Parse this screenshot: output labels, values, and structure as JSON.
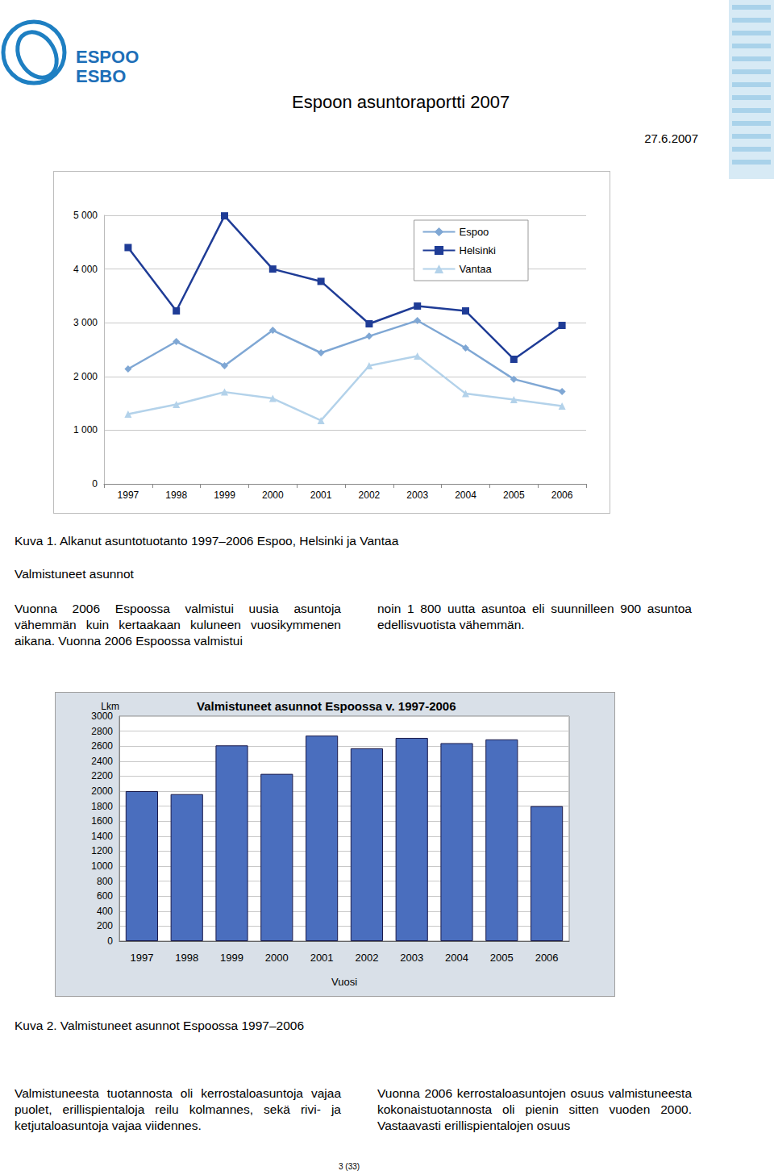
{
  "header": {
    "logo": [
      "ESPOO",
      "ESBO"
    ],
    "title": "Espoon asuntoraportti 2007",
    "date": "27.6.2007"
  },
  "chart_data": [
    {
      "type": "line",
      "categories": [
        "1997",
        "1998",
        "1999",
        "2000",
        "2001",
        "2002",
        "2003",
        "2004",
        "2005",
        "2006"
      ],
      "series": [
        {
          "name": "Espoo",
          "color": "#7fa7d4",
          "marker": "diamond",
          "values": [
            2140,
            2650,
            2200,
            2860,
            2440,
            2750,
            3040,
            2530,
            1950,
            1720
          ]
        },
        {
          "name": "Helsinki",
          "color": "#1f3c96",
          "marker": "square",
          "values": [
            4400,
            3220,
            4990,
            4000,
            3770,
            2980,
            3310,
            3220,
            2320,
            2950
          ]
        },
        {
          "name": "Vantaa",
          "color": "#b3d2ea",
          "marker": "triangle",
          "values": [
            1300,
            1480,
            1710,
            1590,
            1180,
            2200,
            2380,
            1680,
            1570,
            1450
          ]
        }
      ],
      "ylim": [
        0,
        5000
      ],
      "yticks": [
        0,
        {
          "value": 1000,
          "label": "1 000"
        },
        {
          "value": 2000,
          "label": "2 000"
        },
        {
          "value": 3000,
          "label": "3 000"
        },
        {
          "value": 4000,
          "label": "4 000"
        },
        {
          "value": 5000,
          "label": "5 000"
        }
      ],
      "grid": true,
      "legend": "upper right"
    },
    {
      "type": "bar",
      "title": "Valmistuneet asunnot Espoossa v. 1997-2006",
      "x_label": "Vuosi",
      "y_label": "Lkm",
      "categories": [
        "1997",
        "1998",
        "1999",
        "2000",
        "2001",
        "2002",
        "2003",
        "2004",
        "2005",
        "2006"
      ],
      "values": [
        2000,
        1960,
        2610,
        2230,
        2740,
        2570,
        2710,
        2640,
        2690,
        1800
      ],
      "color": "#4a6ebe",
      "ylim": [
        0,
        3000
      ],
      "yticks": [
        0,
        200,
        400,
        600,
        800,
        1000,
        1200,
        1400,
        1600,
        1800,
        2000,
        2200,
        2400,
        2600,
        2800,
        3000
      ],
      "grid": true
    }
  ],
  "captions": [
    "Kuva 1. Alkanut asuntotuotanto 1997–2006 Espoo, Helsinki ja Vantaa",
    "Kuva 2. Valmistuneet asunnot Espoossa 1997–2006"
  ],
  "section_heading": "Valmistuneet asunnot",
  "paragraphs": [
    {
      "left": "Vuonna 2006 Espoossa valmistui uusia asuntoja vähemmän kuin kertaakaan kuluneen vuosikymmenen aikana. Vuonna 2006 Espoossa valmistui",
      "right": "noin 1 800 uutta asuntoa eli suunnilleen 900 asuntoa edellisvuotista vähemmän."
    },
    {
      "left": "Valmistuneesta tuotannosta oli kerrostaloasuntoja vajaa puolet, erillispientaloja reilu kolmannes, sekä rivi- ja ketjutaloasuntoja vajaa viidennes.",
      "right": "Vuonna 2006 kerrostaloasuntojen osuus valmistuneesta kokonaistuotannosta oli pienin sitten vuoden 2000. Vastaavasti erillispientalojen osuus"
    }
  ],
  "page_number": "3 (33)"
}
